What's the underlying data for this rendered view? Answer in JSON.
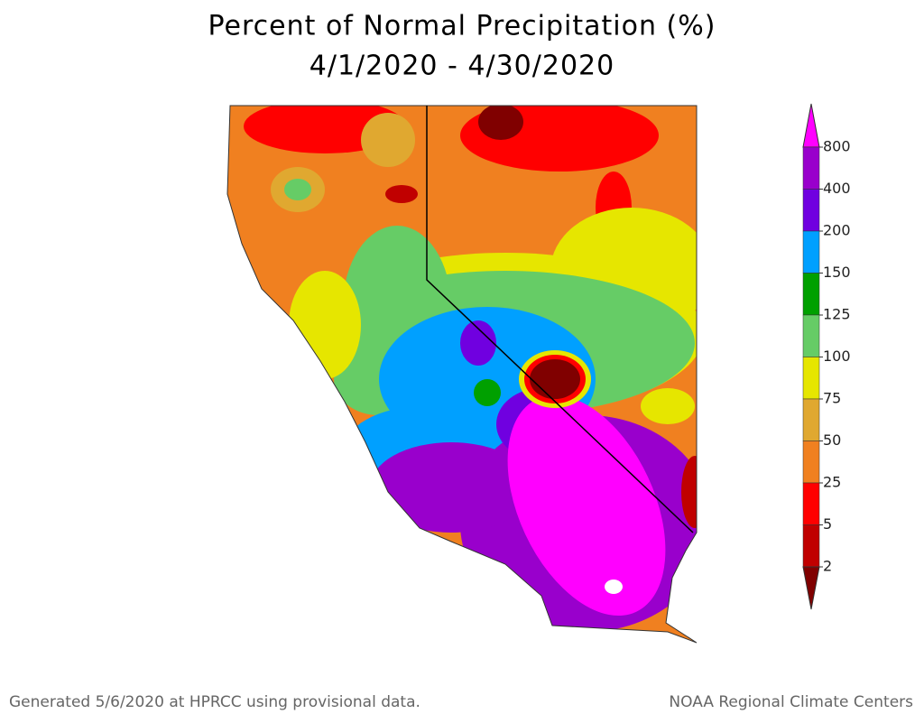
{
  "title": [
    "Percent of Normal Precipitation (%)",
    "4/1/2020 - 4/30/2020"
  ],
  "legend": {
    "ticks": [
      800,
      400,
      200,
      150,
      125,
      100,
      75,
      50,
      25,
      5,
      2
    ],
    "colors": [
      "#ff00ff",
      "#9900cc",
      "#7000e0",
      "#00a0ff",
      "#00a000",
      "#66cc66",
      "#e6e600",
      "#e0a830",
      "#f08020",
      "#ff0000",
      "#c00000",
      "#800000"
    ]
  },
  "footer": {
    "left": "Generated 5/6/2020 at HPRCC using provisional data.",
    "right": "NOAA Regional Climate Centers"
  }
}
